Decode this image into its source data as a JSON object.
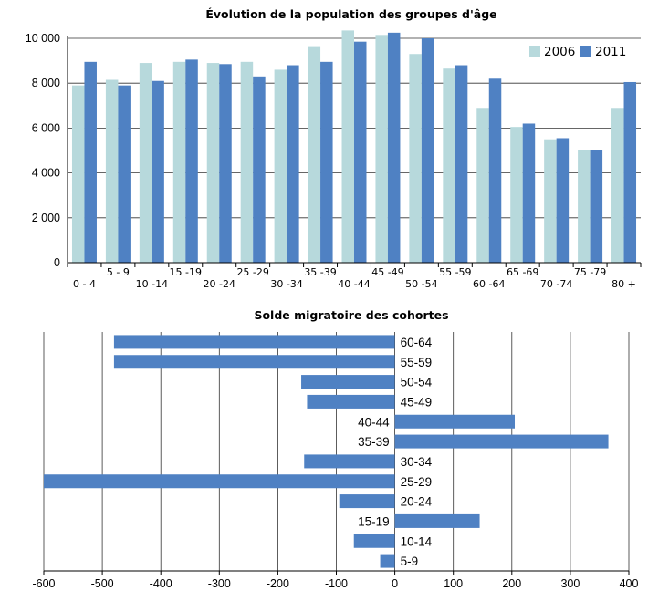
{
  "colors": {
    "s2006": "#b7d9dc",
    "s2011": "#4f81c3",
    "axis": "#000000",
    "grid": "#888888"
  },
  "chart_data": [
    {
      "type": "bar",
      "title": "Évolution de la population des groupes d'âge",
      "categories": [
        "0 - 4",
        "5 - 9",
        "10 -14",
        "15 -19",
        "20 -24",
        "25 -29",
        "30 -34",
        "35 -39",
        "40 -44",
        "45 -49",
        "50 -54",
        "55 -59",
        "60 -64",
        "65 -69",
        "70 -74",
        "75 -79",
        "80 +"
      ],
      "series": [
        {
          "name": "2006",
          "values": [
            7900,
            8150,
            8900,
            8950,
            8900,
            8950,
            8600,
            9650,
            10350,
            10150,
            9300,
            8650,
            6900,
            6050,
            5500,
            5000,
            6900
          ]
        },
        {
          "name": "2011",
          "values": [
            8950,
            7900,
            8100,
            9050,
            8850,
            8300,
            8800,
            8950,
            9850,
            10250,
            10000,
            8800,
            8200,
            6200,
            5550,
            5000,
            8050
          ]
        }
      ],
      "ylim": [
        0,
        10000
      ],
      "yticks": [
        0,
        2000,
        4000,
        6000,
        8000,
        10000
      ],
      "ytick_labels": [
        "0",
        "2 000",
        "4 000",
        "6 000",
        "8 000",
        "10 000"
      ],
      "legend": "top-right",
      "grid": true
    },
    {
      "type": "bar",
      "orientation": "horizontal",
      "title": "Solde migratoire des cohortes",
      "categories": [
        "60-64",
        "55-59",
        "50-54",
        "45-49",
        "40-44",
        "35-39",
        "30-34",
        "25-29",
        "20-24",
        "15-19",
        "10-14",
        "5-9"
      ],
      "values": [
        -480,
        -480,
        -160,
        -150,
        205,
        365,
        -155,
        -600,
        -95,
        145,
        -70,
        -25
      ],
      "xlim": [
        -600,
        400
      ],
      "xticks": [
        -600,
        -500,
        -400,
        -300,
        -200,
        -100,
        0,
        100,
        200,
        300,
        400
      ],
      "grid": true
    }
  ]
}
